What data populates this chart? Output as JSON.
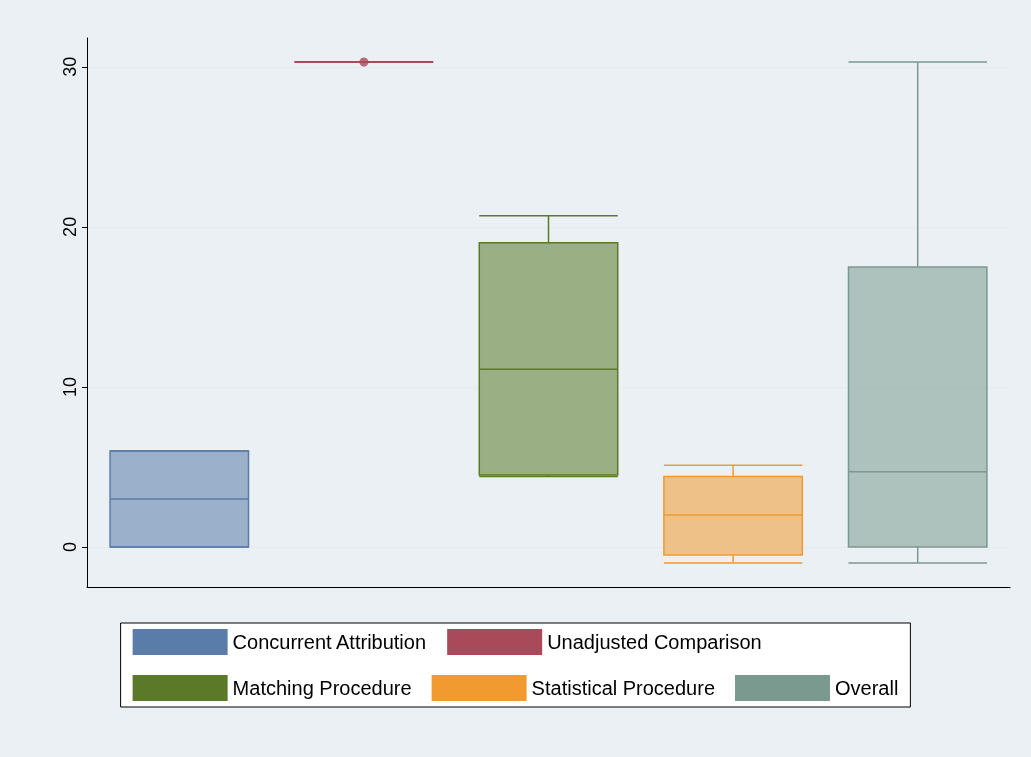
{
  "chart_data": {
    "type": "box",
    "categories": [
      null,
      null,
      null,
      null,
      null
    ],
    "series": [
      {
        "name": "Concurrent Attribution",
        "color": "#5a7ca8",
        "boxes": [
          {
            "low": 0,
            "q1": 0,
            "median": 3.0,
            "q3": 6.0,
            "high": 6.0
          },
          null,
          null,
          null,
          null
        ]
      },
      {
        "name": "Unadjusted Comparison",
        "color": "#a84a5a",
        "boxes": [
          null,
          {
            "low": 30.3,
            "q1": 30.3,
            "median": 30.3,
            "q3": 30.3,
            "high": 30.3,
            "outliers": [
              30.3
            ]
          },
          null,
          null,
          null
        ]
      },
      {
        "name": "Matching Procedure",
        "color": "#5a7a2a",
        "boxes": [
          null,
          null,
          {
            "low": 4.4,
            "q1": 4.5,
            "median": 11.1,
            "q3": 19.0,
            "high": 20.7
          },
          null,
          null
        ]
      },
      {
        "name": "Statistical Procedure",
        "color": "#f09a30",
        "boxes": [
          null,
          null,
          null,
          {
            "low": -1.0,
            "q1": -0.5,
            "median": 2.0,
            "q3": 4.4,
            "high": 5.1
          },
          null
        ]
      },
      {
        "name": "Overall",
        "color": "#7a9a90",
        "boxes": [
          null,
          null,
          null,
          null,
          {
            "low": -1.0,
            "q1": 0,
            "median": 4.7,
            "q3": 17.5,
            "high": 30.3
          }
        ]
      }
    ],
    "ylim": [
      -2.5,
      31.8
    ],
    "yticks": [
      0,
      10,
      20,
      30
    ],
    "grid": "y",
    "legend": "bottom"
  }
}
